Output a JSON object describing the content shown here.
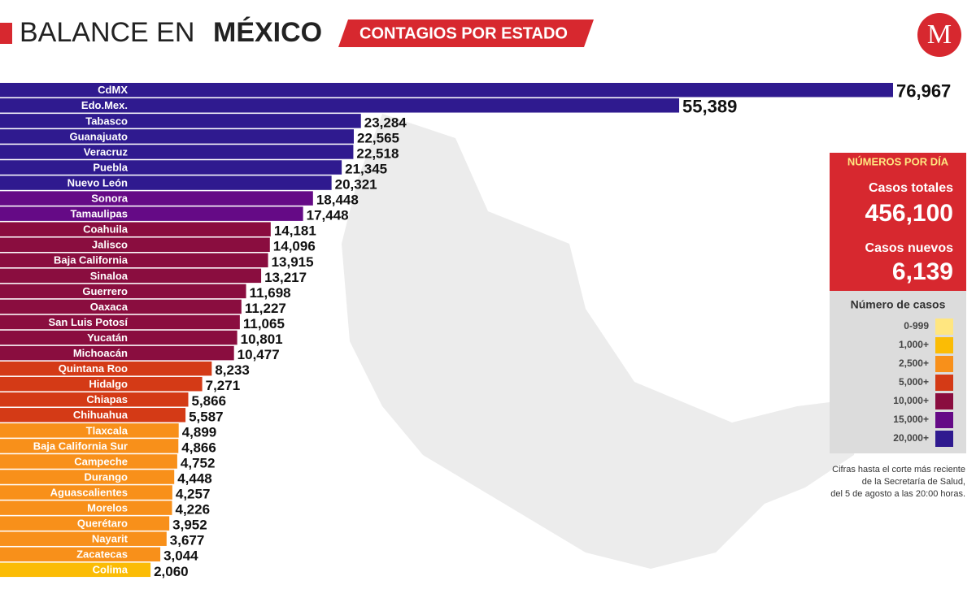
{
  "header": {
    "title_light": "BALANCE EN",
    "title_bold": "MÉXICO",
    "subtitle": "CONTAGIOS POR ESTADO",
    "logo": "M"
  },
  "chart_data": {
    "type": "bar",
    "orientation": "horizontal",
    "categories": [
      "CdMX",
      "Edo.Mex.",
      "Tabasco",
      "Guanajuato",
      "Veracruz",
      "Puebla",
      "Nuevo León",
      "Sonora",
      "Tamaulipas",
      "Coahuila",
      "Jalisco",
      "Baja California",
      "Sinaloa",
      "Guerrero",
      "Oaxaca",
      "San Luis Potosí",
      "Yucatán",
      "Michoacán",
      "Quintana Roo",
      "Hidalgo",
      "Chiapas",
      "Chihuahua",
      "Tlaxcala",
      "Baja California Sur",
      "Campeche",
      "Durango",
      "Aguascalientes",
      "Morelos",
      "Querétaro",
      "Nayarit",
      "Zacatecas",
      "Colima"
    ],
    "values": [
      76967,
      55389,
      23284,
      22565,
      22518,
      21345,
      20321,
      18448,
      17448,
      14181,
      14096,
      13915,
      13217,
      11698,
      11227,
      11065,
      10801,
      10477,
      8233,
      7271,
      5866,
      5587,
      4899,
      4866,
      4752,
      4448,
      4257,
      4226,
      3952,
      3677,
      3044,
      2060
    ],
    "value_labels": [
      "76,967",
      "55,389",
      "23,284",
      "22,565",
      "22,518",
      "21,345",
      "20,321",
      "18,448",
      "17,448",
      "14,181",
      "14,096",
      "13,915",
      "13,217",
      "11,698",
      "11,227",
      "11,065",
      "10,801",
      "10,477",
      "8,233",
      "7,271",
      "5,866",
      "5,587",
      "4,899",
      "4,866",
      "4,752",
      "4,448",
      "4,257",
      "4,226",
      "3,952",
      "3,677",
      "3,044",
      "2,060"
    ],
    "legend_title": "Número de casos",
    "legend": [
      {
        "value": 0,
        "label": "0-999",
        "color": "#ffe680"
      },
      {
        "value": 1000,
        "label": "1,000+",
        "color": "#fbbc05"
      },
      {
        "value": 2500,
        "label": "2,500+",
        "color": "#f8901a"
      },
      {
        "value": 5000,
        "label": "5,000+",
        "color": "#d43a16"
      },
      {
        "value": 10000,
        "label": "10,000+",
        "color": "#8a0d3f"
      },
      {
        "value": 15000,
        "label": "15,000+",
        "color": "#650a86"
      },
      {
        "value": 20000,
        "label": "20,000+",
        "color": "#2f1a8f"
      }
    ]
  },
  "panel": {
    "title": "NÚMEROS POR DÍA",
    "total_label": "Casos totales",
    "total": 456100,
    "total_label_value": "456,100",
    "new_label": "Casos nuevos",
    "new": 6139,
    "new_label_value": "6,139"
  },
  "note": [
    "Cifras hasta el corte más reciente",
    "de la Secretaría de Salud,",
    "del 5 de agosto a las 20:00 horas."
  ]
}
